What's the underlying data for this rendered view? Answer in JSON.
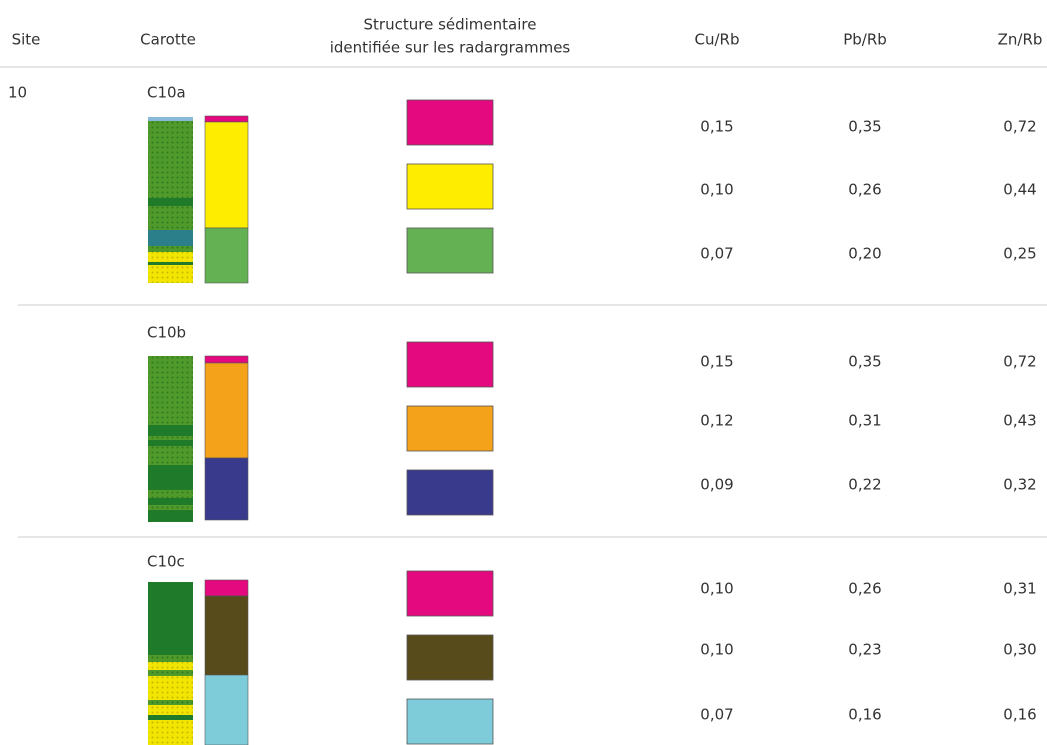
{
  "header": {
    "site": "Site",
    "carotte": "Carotte",
    "structure": [
      "Structure sédimentaire",
      "identifiée sur les radargrammes"
    ],
    "cu": "Cu/Rb",
    "pb": "Pb/Rb",
    "zn": "Zn/Rb"
  },
  "site": "10",
  "cores": [
    {
      "name": "C10a",
      "layers": [
        {
          "color": "#e5097f",
          "cu": "0,15",
          "pb": "0,35",
          "zn": "0,72"
        },
        {
          "color": "#ffed00",
          "cu": "0,10",
          "pb": "0,26",
          "zn": "0,44"
        },
        {
          "color": "#63b152",
          "cu": "0,07",
          "pb": "0,20",
          "zn": "0,25"
        }
      ]
    },
    {
      "name": "C10b",
      "layers": [
        {
          "color": "#e5097f",
          "cu": "0,15",
          "pb": "0,35",
          "zn": "0,72"
        },
        {
          "color": "#f3a21a",
          "cu": "0,12",
          "pb": "0,31",
          "zn": "0,43"
        },
        {
          "color": "#3a3a8c",
          "cu": "0,09",
          "pb": "0,22",
          "zn": "0,32"
        }
      ]
    },
    {
      "name": "C10c",
      "layers": [
        {
          "color": "#e5097f",
          "cu": "0,10",
          "pb": "0,26",
          "zn": "0,31"
        },
        {
          "color": "#574b1b",
          "cu": "0,10",
          "pb": "0,23",
          "zn": "0,30"
        },
        {
          "color": "#7ecbd9",
          "cu": "0,07",
          "pb": "0,16",
          "zn": "0,16"
        }
      ]
    }
  ]
}
